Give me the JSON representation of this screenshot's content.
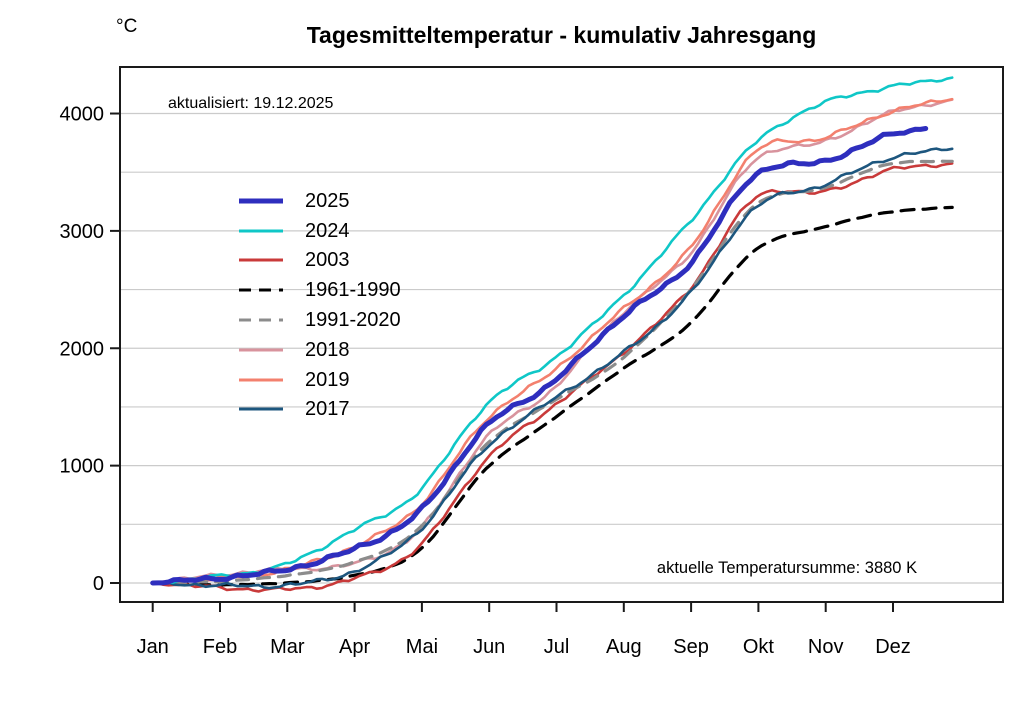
{
  "chart": {
    "title": "Tagesmitteltemperatur - kumulativ Jahresgang",
    "y_unit": "°C",
    "updated_text": "aktualisiert: 19.12.2025",
    "current_sum_text": "aktuelle Temperatursumme: 3880 K"
  },
  "chart_data": {
    "type": "line",
    "title": "Tagesmitteltemperatur - kumulativ Jahresgang",
    "subtitle": "aktualisiert: 19.12.2025",
    "annotation": "aktuelle Temperatursumme: 3880 K",
    "ylabel": "°C",
    "xlabel": "",
    "grid": true,
    "legend_position": "upper left inside",
    "x_tick_labels": [
      "Jan",
      "Feb",
      "Mar",
      "Apr",
      "Mai",
      "Jun",
      "Jul",
      "Aug",
      "Sep",
      "Okt",
      "Nov",
      "Dez"
    ],
    "y_tick_values": [
      0,
      1000,
      2000,
      3000,
      4000
    ],
    "y_grid_step": 500,
    "ylim": [
      -160,
      4390
    ],
    "x_range_days": [
      1,
      365
    ],
    "anchor_days": [
      1,
      32,
      60,
      91,
      121,
      152,
      182,
      213,
      244,
      274,
      305,
      335,
      365
    ],
    "series": [
      {
        "name": "2025",
        "color": "#2E2EBE",
        "width": 5,
        "dash": null,
        "z": 8,
        "end_day": 353,
        "values": [
          0,
          45,
          110,
          280,
          590,
          1330,
          1705,
          2255,
          2710,
          3475,
          3590,
          3816,
          3880
        ]
      },
      {
        "name": "2024",
        "color": "#0FC7C7",
        "width": 2.6,
        "dash": null,
        "z": 7,
        "end_day": 365,
        "values": [
          0,
          60,
          150,
          440,
          770,
          1516,
          1900,
          2425,
          3066,
          3747,
          4088,
          4224,
          4310
        ]
      },
      {
        "name": "2003",
        "color": "#C93A3A",
        "width": 2.6,
        "dash": null,
        "z": 4,
        "end_day": 365,
        "values": [
          0,
          -40,
          -55,
          30,
          298,
          1048,
          1499,
          1942,
          2495,
          3279,
          3330,
          3517,
          3577
        ]
      },
      {
        "name": "1961-1990",
        "color": "#000000",
        "width": 3.2,
        "dash": "13 9",
        "z": 2,
        "end_day": 365,
        "values": [
          0,
          -15,
          0,
          60,
          264,
          970,
          1390,
          1810,
          2200,
          2836,
          3032,
          3160,
          3202
        ]
      },
      {
        "name": "1991-2020",
        "color": "#8C8C8C",
        "width": 3.2,
        "dash": "12 9",
        "z": 5,
        "end_day": 365,
        "values": [
          0,
          15,
          60,
          170,
          450,
          1175,
          1542,
          1900,
          2478,
          3219,
          3364,
          3569,
          3594
        ]
      },
      {
        "name": "2018",
        "color": "#D8939D",
        "width": 2.6,
        "dash": null,
        "z": 1,
        "end_day": 365,
        "values": [
          0,
          70,
          120,
          160,
          434,
          1235,
          1644,
          2282,
          2794,
          3602,
          3756,
          4003,
          4122
        ]
      },
      {
        "name": "2019",
        "color": "#F3806E",
        "width": 2.6,
        "dash": null,
        "z": 3,
        "end_day": 365,
        "values": [
          0,
          40,
          110,
          300,
          640,
          1388,
          1797,
          2313,
          2836,
          3671,
          3790,
          4012,
          4131
        ]
      },
      {
        "name": "2017",
        "color": "#1D567E",
        "width": 2.6,
        "dash": null,
        "z": 6,
        "end_day": 365,
        "values": [
          0,
          -20,
          -20,
          90,
          430,
          1150,
          1559,
          1942,
          2453,
          3194,
          3390,
          3620,
          3705
        ]
      }
    ]
  }
}
